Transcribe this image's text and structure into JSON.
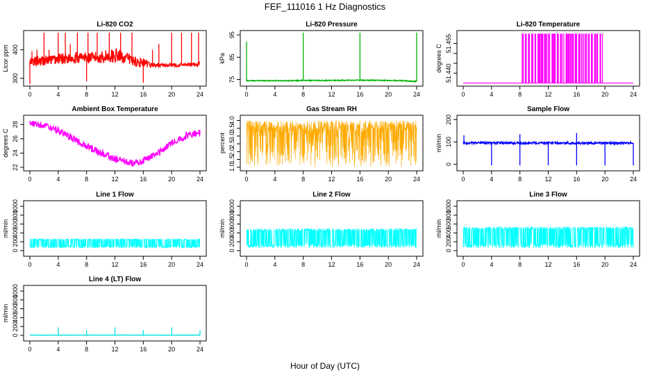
{
  "figure": {
    "title": "FEF_111016  1 Hz Diagnostics",
    "xlabel": "Hour of Day (UTC)"
  },
  "chart_data": [
    {
      "id": "co2",
      "type": "line",
      "title": "Li-820 CO2",
      "ylabel": "Licor ppm",
      "color": "#ff0000",
      "xlim": [
        0,
        24
      ],
      "ylim": [
        280,
        460
      ],
      "xticks": [
        0,
        4,
        8,
        12,
        16,
        20,
        24
      ],
      "yticks": [
        300,
        400
      ],
      "ytick_labels": [
        "300",
        "400"
      ],
      "x": [
        0,
        1,
        2,
        3,
        4,
        5,
        6,
        7,
        8,
        9,
        10,
        11,
        12,
        13,
        14,
        15,
        16,
        17,
        18,
        19,
        20,
        21,
        22,
        23,
        24
      ],
      "y": [
        355,
        360,
        362,
        365,
        368,
        370,
        372,
        373,
        372,
        372,
        374,
        378,
        380,
        376,
        368,
        358,
        352,
        347,
        346,
        346,
        346,
        346,
        347,
        348,
        350
      ],
      "band": [
        18,
        18,
        18,
        18,
        20,
        20,
        20,
        20,
        20,
        20,
        22,
        24,
        24,
        22,
        20,
        18,
        16,
        10,
        6,
        6,
        6,
        6,
        6,
        6,
        10
      ],
      "spikes": [
        [
          0,
          280
        ],
        [
          0.3,
          395
        ],
        [
          1,
          400
        ],
        [
          2,
          460
        ],
        [
          2.7,
          400
        ],
        [
          4,
          460
        ],
        [
          5,
          460
        ],
        [
          5.7,
          420
        ],
        [
          6.7,
          460
        ],
        [
          8,
          290
        ],
        [
          8.2,
          460
        ],
        [
          9.5,
          460
        ],
        [
          11.2,
          460
        ],
        [
          12.8,
          460
        ],
        [
          14.4,
          460
        ],
        [
          16,
          285
        ],
        [
          17.3,
          400
        ],
        [
          18.2,
          420
        ],
        [
          20,
          460
        ],
        [
          21.4,
          460
        ],
        [
          22.8,
          460
        ],
        [
          23.8,
          460
        ]
      ]
    },
    {
      "id": "pressure",
      "type": "line",
      "title": "Li-820 Pressure",
      "ylabel": "kPa",
      "color": "#00b300",
      "xlim": [
        0,
        24
      ],
      "ylim": [
        73,
        96
      ],
      "xticks": [
        0,
        4,
        8,
        12,
        16,
        20,
        24
      ],
      "yticks": [
        75,
        85,
        95
      ],
      "ytick_labels": [
        "75",
        "85",
        "95"
      ],
      "x": [
        0,
        2,
        4,
        6,
        8,
        10,
        12,
        14,
        16,
        18,
        20,
        22,
        23.6,
        24
      ],
      "y": [
        74.5,
        74.5,
        74.5,
        74.5,
        74.6,
        74.6,
        74.6,
        74.7,
        74.7,
        74.7,
        74.6,
        74.5,
        74.2,
        74.2
      ],
      "band": [
        0.2,
        0.2,
        0.2,
        0.2,
        0.2,
        0.2,
        0.2,
        0.2,
        0.2,
        0.2,
        0.2,
        0.2,
        0.2,
        0.2
      ],
      "spikes": [
        [
          0,
          92
        ],
        [
          8,
          96
        ],
        [
          16,
          96
        ],
        [
          24,
          96
        ]
      ]
    },
    {
      "id": "li820temp",
      "type": "line",
      "title": "Li-820 Temperature",
      "ylabel": "degrees C",
      "color": "#ff00ff",
      "xlim": [
        0,
        24
      ],
      "ylim": [
        51.4345,
        51.4605
      ],
      "xticks": [
        0,
        4,
        8,
        12,
        16,
        20,
        24
      ],
      "yticks": [
        51.44,
        51.455
      ],
      "ytick_labels": [
        "51.440",
        "51.455"
      ],
      "minor_yticks": [
        51.445,
        51.45
      ],
      "baseline": 51.435,
      "toggle_range": [
        8.3,
        19.7
      ],
      "toggle_high": 51.46
    },
    {
      "id": "boxtemp",
      "type": "line",
      "title": "Ambient Box Temperature",
      "ylabel": "degrees C",
      "color": "#ff00ff",
      "xlim": [
        0,
        24
      ],
      "ylim": [
        21.8,
        29
      ],
      "xticks": [
        0,
        4,
        8,
        12,
        16,
        20,
        24
      ],
      "yticks": [
        22,
        24,
        26,
        28
      ],
      "ytick_labels": [
        "22",
        "24",
        "26",
        "28"
      ],
      "x": [
        0,
        2,
        4,
        6,
        8,
        10,
        12,
        14,
        15,
        16,
        18,
        20,
        22,
        24
      ],
      "y": [
        28.2,
        27.9,
        27.1,
        26.0,
        25.0,
        24.0,
        23.2,
        22.6,
        22.6,
        22.9,
        24.0,
        25.4,
        26.4,
        26.8
      ],
      "band": [
        0.4,
        0.4,
        0.5,
        0.5,
        0.5,
        0.5,
        0.5,
        0.5,
        0.5,
        0.5,
        0.5,
        0.5,
        0.5,
        0.5
      ],
      "spikes": []
    },
    {
      "id": "rh",
      "type": "line",
      "title": "Gas Stream RH",
      "ylabel": "percent",
      "color": "#ffaa00",
      "xlim": [
        0,
        24
      ],
      "ylim": [
        0.9,
        4.2
      ],
      "xticks": [
        0,
        4,
        8,
        12,
        16,
        20,
        24
      ],
      "yticks": [
        1.0,
        1.5,
        2.0,
        2.5,
        3.0,
        3.5,
        4.0
      ],
      "ytick_labels": [
        "1.0",
        "1.5",
        "2.0",
        "2.5",
        "3.0",
        "3.5",
        "4.0"
      ],
      "range_low": 1.0,
      "range_high": 4.0
    },
    {
      "id": "sampleflow",
      "type": "line",
      "title": "Sample Flow",
      "ylabel": "ml/min",
      "color": "#0000ff",
      "xlim": [
        0,
        24
      ],
      "ylim": [
        -20,
        210
      ],
      "xticks": [
        0,
        4,
        8,
        12,
        16,
        20,
        24
      ],
      "yticks": [
        0,
        100,
        200
      ],
      "ytick_labels": [
        "0",
        "100",
        "200"
      ],
      "x": [
        0,
        24
      ],
      "y": [
        95,
        95
      ],
      "band": [
        5,
        5
      ],
      "spikes": [
        [
          0.1,
          130
        ],
        [
          4,
          -5
        ],
        [
          8,
          135
        ],
        [
          8,
          -5
        ],
        [
          12,
          -5
        ],
        [
          16,
          140
        ],
        [
          16,
          -5
        ],
        [
          20,
          -5
        ],
        [
          24,
          -5
        ]
      ]
    },
    {
      "id": "line1",
      "type": "line",
      "title": "Line 1 Flow",
      "ylabel": "ml/min",
      "color": "#00ffff",
      "xlim": [
        0,
        24
      ],
      "ylim": [
        -80,
        1080
      ],
      "xticks": [
        0,
        4,
        8,
        12,
        16,
        20,
        24
      ],
      "yticks": [
        0,
        200,
        400,
        600,
        800,
        1000
      ],
      "ytick_labels": [
        "0",
        "200",
        "400",
        "600",
        "800",
        "1000"
      ],
      "range_low": 60,
      "range_high": 270,
      "gaps": [
        4,
        8,
        12,
        16,
        20
      ]
    },
    {
      "id": "line2",
      "type": "line",
      "title": "Line 2 Flow",
      "ylabel": "ml/min",
      "color": "#00ffff",
      "xlim": [
        0,
        24
      ],
      "ylim": [
        -80,
        1080
      ],
      "xticks": [
        0,
        4,
        8,
        12,
        16,
        20,
        24
      ],
      "yticks": [
        0,
        200,
        400,
        600,
        800,
        1000
      ],
      "ytick_labels": [
        "0",
        "200",
        "400",
        "600",
        "800",
        "1000"
      ],
      "range_low": 60,
      "range_high": 500,
      "gaps": [
        4,
        8,
        12,
        16,
        20
      ]
    },
    {
      "id": "line3",
      "type": "line",
      "title": "Line 3 Flow",
      "ylabel": "ml/min",
      "color": "#00ffff",
      "xlim": [
        0,
        24
      ],
      "ylim": [
        -80,
        1080
      ],
      "xticks": [
        0,
        4,
        8,
        12,
        16,
        20,
        24
      ],
      "yticks": [
        0,
        200,
        400,
        600,
        800,
        1000
      ],
      "ytick_labels": [
        "0",
        "200",
        "400",
        "600",
        "800",
        "1000"
      ],
      "range_low": 60,
      "range_high": 540,
      "gaps": [
        4,
        8,
        12,
        16,
        20
      ]
    },
    {
      "id": "line4",
      "type": "line",
      "title": "Line 4 (LT) Flow",
      "ylabel": "ml/min",
      "color": "#00e0e0",
      "xlim": [
        0,
        24
      ],
      "ylim": [
        -80,
        1080
      ],
      "xticks": [
        0,
        4,
        8,
        12,
        16,
        20,
        24
      ],
      "yticks": [
        0,
        200,
        400,
        600,
        800,
        1000
      ],
      "ytick_labels": [
        "0",
        "200",
        "400",
        "600",
        "800",
        "1000"
      ],
      "x": [
        0,
        24
      ],
      "y": [
        5,
        5
      ],
      "band": [
        3,
        3
      ],
      "spikes": [
        [
          4,
          180
        ],
        [
          8,
          120
        ],
        [
          12,
          180
        ],
        [
          16,
          120
        ],
        [
          20,
          180
        ],
        [
          24,
          110
        ]
      ]
    }
  ]
}
